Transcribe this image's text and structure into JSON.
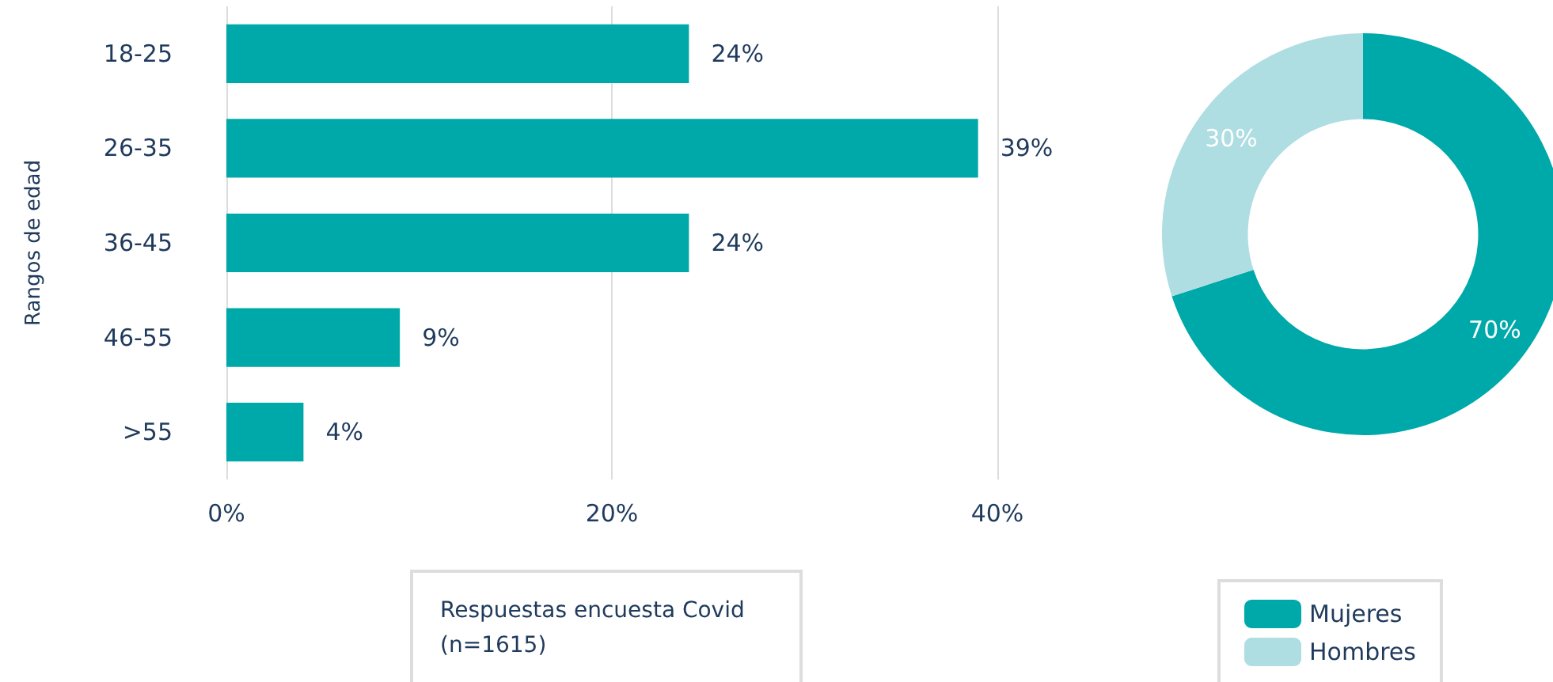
{
  "chart_data": [
    {
      "type": "bar",
      "orientation": "horizontal",
      "ylabel": "Rangos de edad",
      "categories": [
        "18-25",
        "26-35",
        "36-45",
        "46-55",
        ">55"
      ],
      "series": [
        {
          "color": "#00a9a9",
          "values": [
            24,
            39,
            24,
            9,
            4
          ]
        }
      ],
      "value_labels": [
        "24%",
        "39%",
        "24%",
        "9%",
        "4%"
      ],
      "xlim": [
        0,
        40
      ],
      "xticks": [
        {
          "value": 0,
          "label": "0%"
        },
        {
          "value": 20,
          "label": "20%"
        },
        {
          "value": 40,
          "label": "40%"
        }
      ],
      "grid": "x",
      "legend": false,
      "annotations": [
        "Respuestas encuesta Covid\n(n=1615)"
      ]
    },
    {
      "type": "donut",
      "categories": [
        "Mujeres",
        "Hombres"
      ],
      "values": [
        70,
        30
      ],
      "colors": [
        "#00a9a9",
        "#aedde2"
      ],
      "value_labels": [
        "70%",
        "30%"
      ],
      "legend": "bottom"
    }
  ]
}
